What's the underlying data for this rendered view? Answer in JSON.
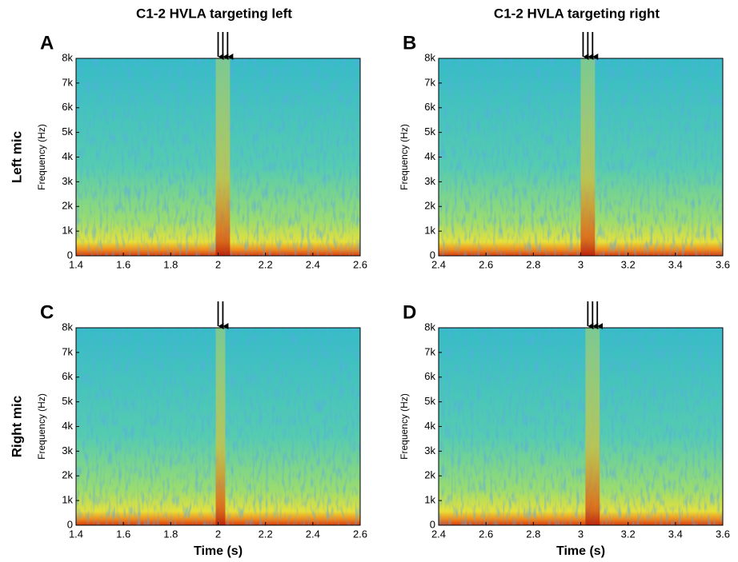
{
  "column_titles": [
    "C1-2 HVLA targeting left",
    "C1-2 HVLA targeting right"
  ],
  "row_labels": [
    "Left mic",
    "Right mic"
  ],
  "chart_data": [
    {
      "type": "spectrogram",
      "panel": "A",
      "ylabel": "Frequency (Hz)",
      "xlim": [
        1.4,
        2.6
      ],
      "xticks": [
        1.4,
        1.6,
        1.8,
        2,
        2.2,
        2.4,
        2.6
      ],
      "ylim": [
        0,
        8000
      ],
      "yticks": [
        0,
        {
          "value": 1000,
          "label": "1k"
        },
        {
          "value": 2000,
          "label": "2k"
        },
        {
          "value": 3000,
          "label": "3k"
        },
        {
          "value": 4000,
          "label": "4k"
        },
        {
          "value": 5000,
          "label": "5k"
        },
        {
          "value": 6000,
          "label": "6k"
        },
        {
          "value": 7000,
          "label": "7k"
        },
        {
          "value": 8000,
          "label": "8k"
        }
      ],
      "markers": [
        2.0,
        2.02,
        2.04
      ]
    },
    {
      "type": "spectrogram",
      "panel": "B",
      "ylabel": "Frequency (Hz)",
      "xlim": [
        2.4,
        3.6
      ],
      "xticks": [
        2.4,
        2.6,
        2.8,
        3,
        3.2,
        3.4,
        3.6
      ],
      "ylim": [
        0,
        8000
      ],
      "yticks": [
        0,
        {
          "value": 1000,
          "label": "1k"
        },
        {
          "value": 2000,
          "label": "2k"
        },
        {
          "value": 3000,
          "label": "3k"
        },
        {
          "value": 4000,
          "label": "4k"
        },
        {
          "value": 5000,
          "label": "5k"
        },
        {
          "value": 6000,
          "label": "6k"
        },
        {
          "value": 7000,
          "label": "7k"
        },
        {
          "value": 8000,
          "label": "8k"
        }
      ],
      "markers": [
        3.01,
        3.03,
        3.05
      ]
    },
    {
      "type": "spectrogram",
      "panel": "C",
      "ylabel": "Frequency (Hz)",
      "xlabel": "Time (s)",
      "xlim": [
        1.4,
        2.6
      ],
      "xticks": [
        1.4,
        1.6,
        1.8,
        2,
        2.2,
        2.4,
        2.6
      ],
      "ylim": [
        0,
        8000
      ],
      "yticks": [
        0,
        {
          "value": 1000,
          "label": "1k"
        },
        {
          "value": 2000,
          "label": "2k"
        },
        {
          "value": 3000,
          "label": "3k"
        },
        {
          "value": 4000,
          "label": "4k"
        },
        {
          "value": 5000,
          "label": "5k"
        },
        {
          "value": 6000,
          "label": "6k"
        },
        {
          "value": 7000,
          "label": "7k"
        },
        {
          "value": 8000,
          "label": "8k"
        }
      ],
      "markers": [
        2.0,
        2.02
      ]
    },
    {
      "type": "spectrogram",
      "panel": "D",
      "ylabel": "Frequency (Hz)",
      "xlabel": "Time (s)",
      "xlim": [
        2.4,
        3.6
      ],
      "xticks": [
        2.4,
        2.6,
        2.8,
        3,
        3.2,
        3.4,
        3.6
      ],
      "ylim": [
        0,
        8000
      ],
      "yticks": [
        0,
        {
          "value": 1000,
          "label": "1k"
        },
        {
          "value": 2000,
          "label": "2k"
        },
        {
          "value": 3000,
          "label": "3k"
        },
        {
          "value": 4000,
          "label": "4k"
        },
        {
          "value": 5000,
          "label": "5k"
        },
        {
          "value": 6000,
          "label": "6k"
        },
        {
          "value": 7000,
          "label": "7k"
        },
        {
          "value": 8000,
          "label": "8k"
        }
      ],
      "markers": [
        3.03,
        3.05,
        3.07
      ]
    }
  ]
}
